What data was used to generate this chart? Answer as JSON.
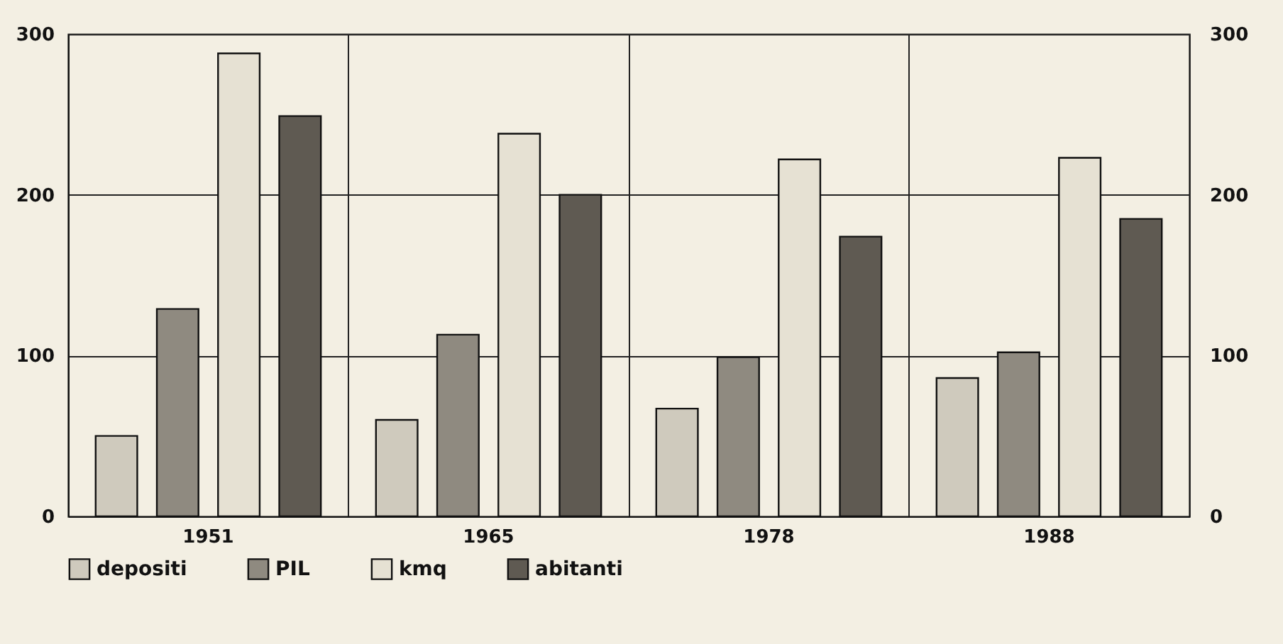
{
  "chart_data": {
    "type": "bar",
    "categories": [
      "1951",
      "1965",
      "1978",
      "1988"
    ],
    "series": [
      {
        "name": "depositi",
        "color": "#cfcabd",
        "values": [
          50,
          60,
          67,
          86
        ]
      },
      {
        "name": "PIL",
        "color": "#8f8a80",
        "values": [
          129,
          113,
          99,
          102
        ]
      },
      {
        "name": "kmq",
        "color": "#e6e1d3",
        "values": [
          288,
          238,
          222,
          223
        ]
      },
      {
        "name": "abitanti",
        "color": "#5f5a52",
        "values": [
          249,
          200,
          174,
          185
        ]
      }
    ],
    "ylim": [
      0,
      300
    ],
    "yticks": [
      0,
      100,
      200,
      300
    ],
    "y2lim": [
      0,
      300
    ],
    "y2ticks": [
      0,
      100,
      200,
      300
    ],
    "grid": true,
    "legend": "bottom"
  }
}
